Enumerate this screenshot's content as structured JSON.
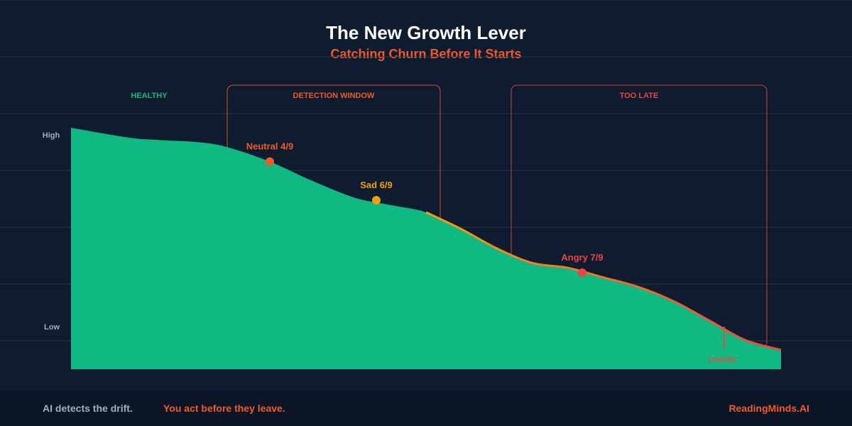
{
  "header": {
    "title": "The New Growth Lever",
    "subtitle": "Catching Churn Before It Starts"
  },
  "colors": {
    "background": "#0f1b2e",
    "footer_bg": "#0b1526",
    "grid": "#2a3a52",
    "area": "#10b981",
    "healthy": "#10b981",
    "warning": "#f05a28",
    "sad": "#f59e0b",
    "danger": "#ef4444",
    "axis_text": "#a0aec0",
    "title": "#ffffff"
  },
  "chart_data": {
    "type": "area",
    "title": "The New Growth Lever",
    "subtitle": "Catching Churn Before It Starts",
    "ylabel": "",
    "y_ticks": [
      "High",
      "Low"
    ],
    "ylim": [
      0,
      10
    ],
    "xlim": [
      0,
      100
    ],
    "grid": true,
    "series": [
      {
        "x": [
          0,
          8,
          12,
          18,
          22,
          28,
          34,
          40,
          45,
          50,
          55,
          60,
          65,
          70,
          75,
          80,
          85,
          90,
          95,
          100
        ],
        "values": [
          10,
          9.6,
          9.5,
          9.4,
          9.2,
          8.6,
          7.8,
          7.1,
          6.8,
          6.5,
          5.8,
          5,
          4.4,
          4.2,
          3.8,
          3.4,
          2.8,
          2.0,
          1.2,
          0.8
        ]
      }
    ],
    "zones": [
      {
        "label": "HEALTHY",
        "boxed": false,
        "color": "#10b981",
        "x_range": [
          0,
          22
        ]
      },
      {
        "label": "DETECTION WINDOW",
        "boxed": true,
        "color": "#f05a28",
        "x_range": [
          22,
          52
        ]
      },
      {
        "label": "TOO LATE",
        "boxed": true,
        "color": "#ef4444",
        "x_range": [
          62,
          98
        ]
      }
    ],
    "markers": [
      {
        "label": "Neutral 4/9",
        "x": 28,
        "y": 8.6,
        "color": "#f05a28"
      },
      {
        "label": "Sad 6/9",
        "x": 43,
        "y": 7.0,
        "color": "#f59e0b"
      },
      {
        "label": "Angry 7/9",
        "x": 72,
        "y": 4.0,
        "color": "#ef4444"
      }
    ],
    "event": {
      "label": "CANCEL",
      "x": 92,
      "color": "#ef4444"
    }
  },
  "footer": {
    "left": "AI detects the drift.",
    "middle": "You act before they leave.",
    "brand": "ReadingMinds.AI"
  }
}
